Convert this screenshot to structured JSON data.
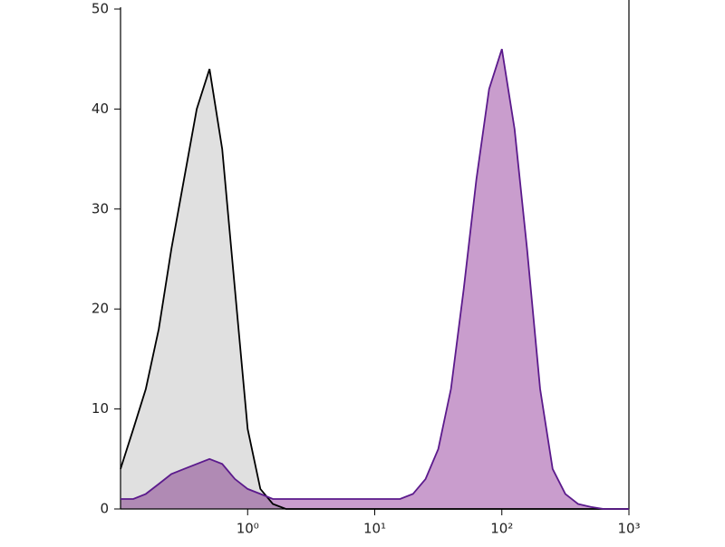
{
  "chart_data": {
    "type": "area",
    "x": [
      0.1,
      0.126,
      0.158,
      0.2,
      0.251,
      0.316,
      0.398,
      0.501,
      0.631,
      0.794,
      1,
      1.26,
      1.58,
      2,
      2.51,
      3.16,
      3.98,
      5.01,
      6.31,
      7.94,
      10,
      12.6,
      15.8,
      20,
      25.1,
      31.6,
      39.8,
      50.1,
      63.1,
      79.4,
      100,
      126,
      158,
      200,
      251,
      316,
      398,
      501,
      631,
      794,
      1000
    ],
    "series": [
      {
        "color": "#e0e0e0",
        "line_color": "#000000",
        "values": [
          4,
          8,
          12,
          18,
          26,
          33,
          40,
          44,
          36,
          22,
          8,
          2,
          0.5,
          0,
          0,
          0,
          0,
          0,
          0,
          0,
          0,
          0,
          0,
          0,
          0,
          0,
          0,
          0,
          0,
          0,
          0,
          0,
          0,
          0,
          0,
          0,
          0,
          0,
          0,
          0,
          0
        ]
      },
      {
        "color": "#c08cc4",
        "line_color": "#5b1a8c",
        "values": [
          1,
          1,
          1.5,
          2.5,
          3.5,
          4,
          4.5,
          5,
          4.5,
          3,
          2,
          1.5,
          1,
          1,
          1,
          1,
          1,
          1,
          1,
          1,
          1,
          1,
          1,
          1.5,
          3,
          6,
          12,
          22,
          33,
          42,
          46,
          38,
          26,
          12,
          4,
          1.5,
          0.5,
          0.2,
          0,
          0,
          0
        ]
      }
    ],
    "log_x": true,
    "xlim": [
      0.1,
      1000
    ],
    "xticks": [
      {
        "value": 1,
        "label": "10⁰"
      },
      {
        "value": 10,
        "label": "10¹"
      },
      {
        "value": 100,
        "label": "10²"
      },
      {
        "value": 1000,
        "label": "10³"
      }
    ],
    "ylim": [
      0,
      50
    ],
    "yticks": [
      0,
      10,
      20,
      30,
      40,
      50
    ]
  }
}
